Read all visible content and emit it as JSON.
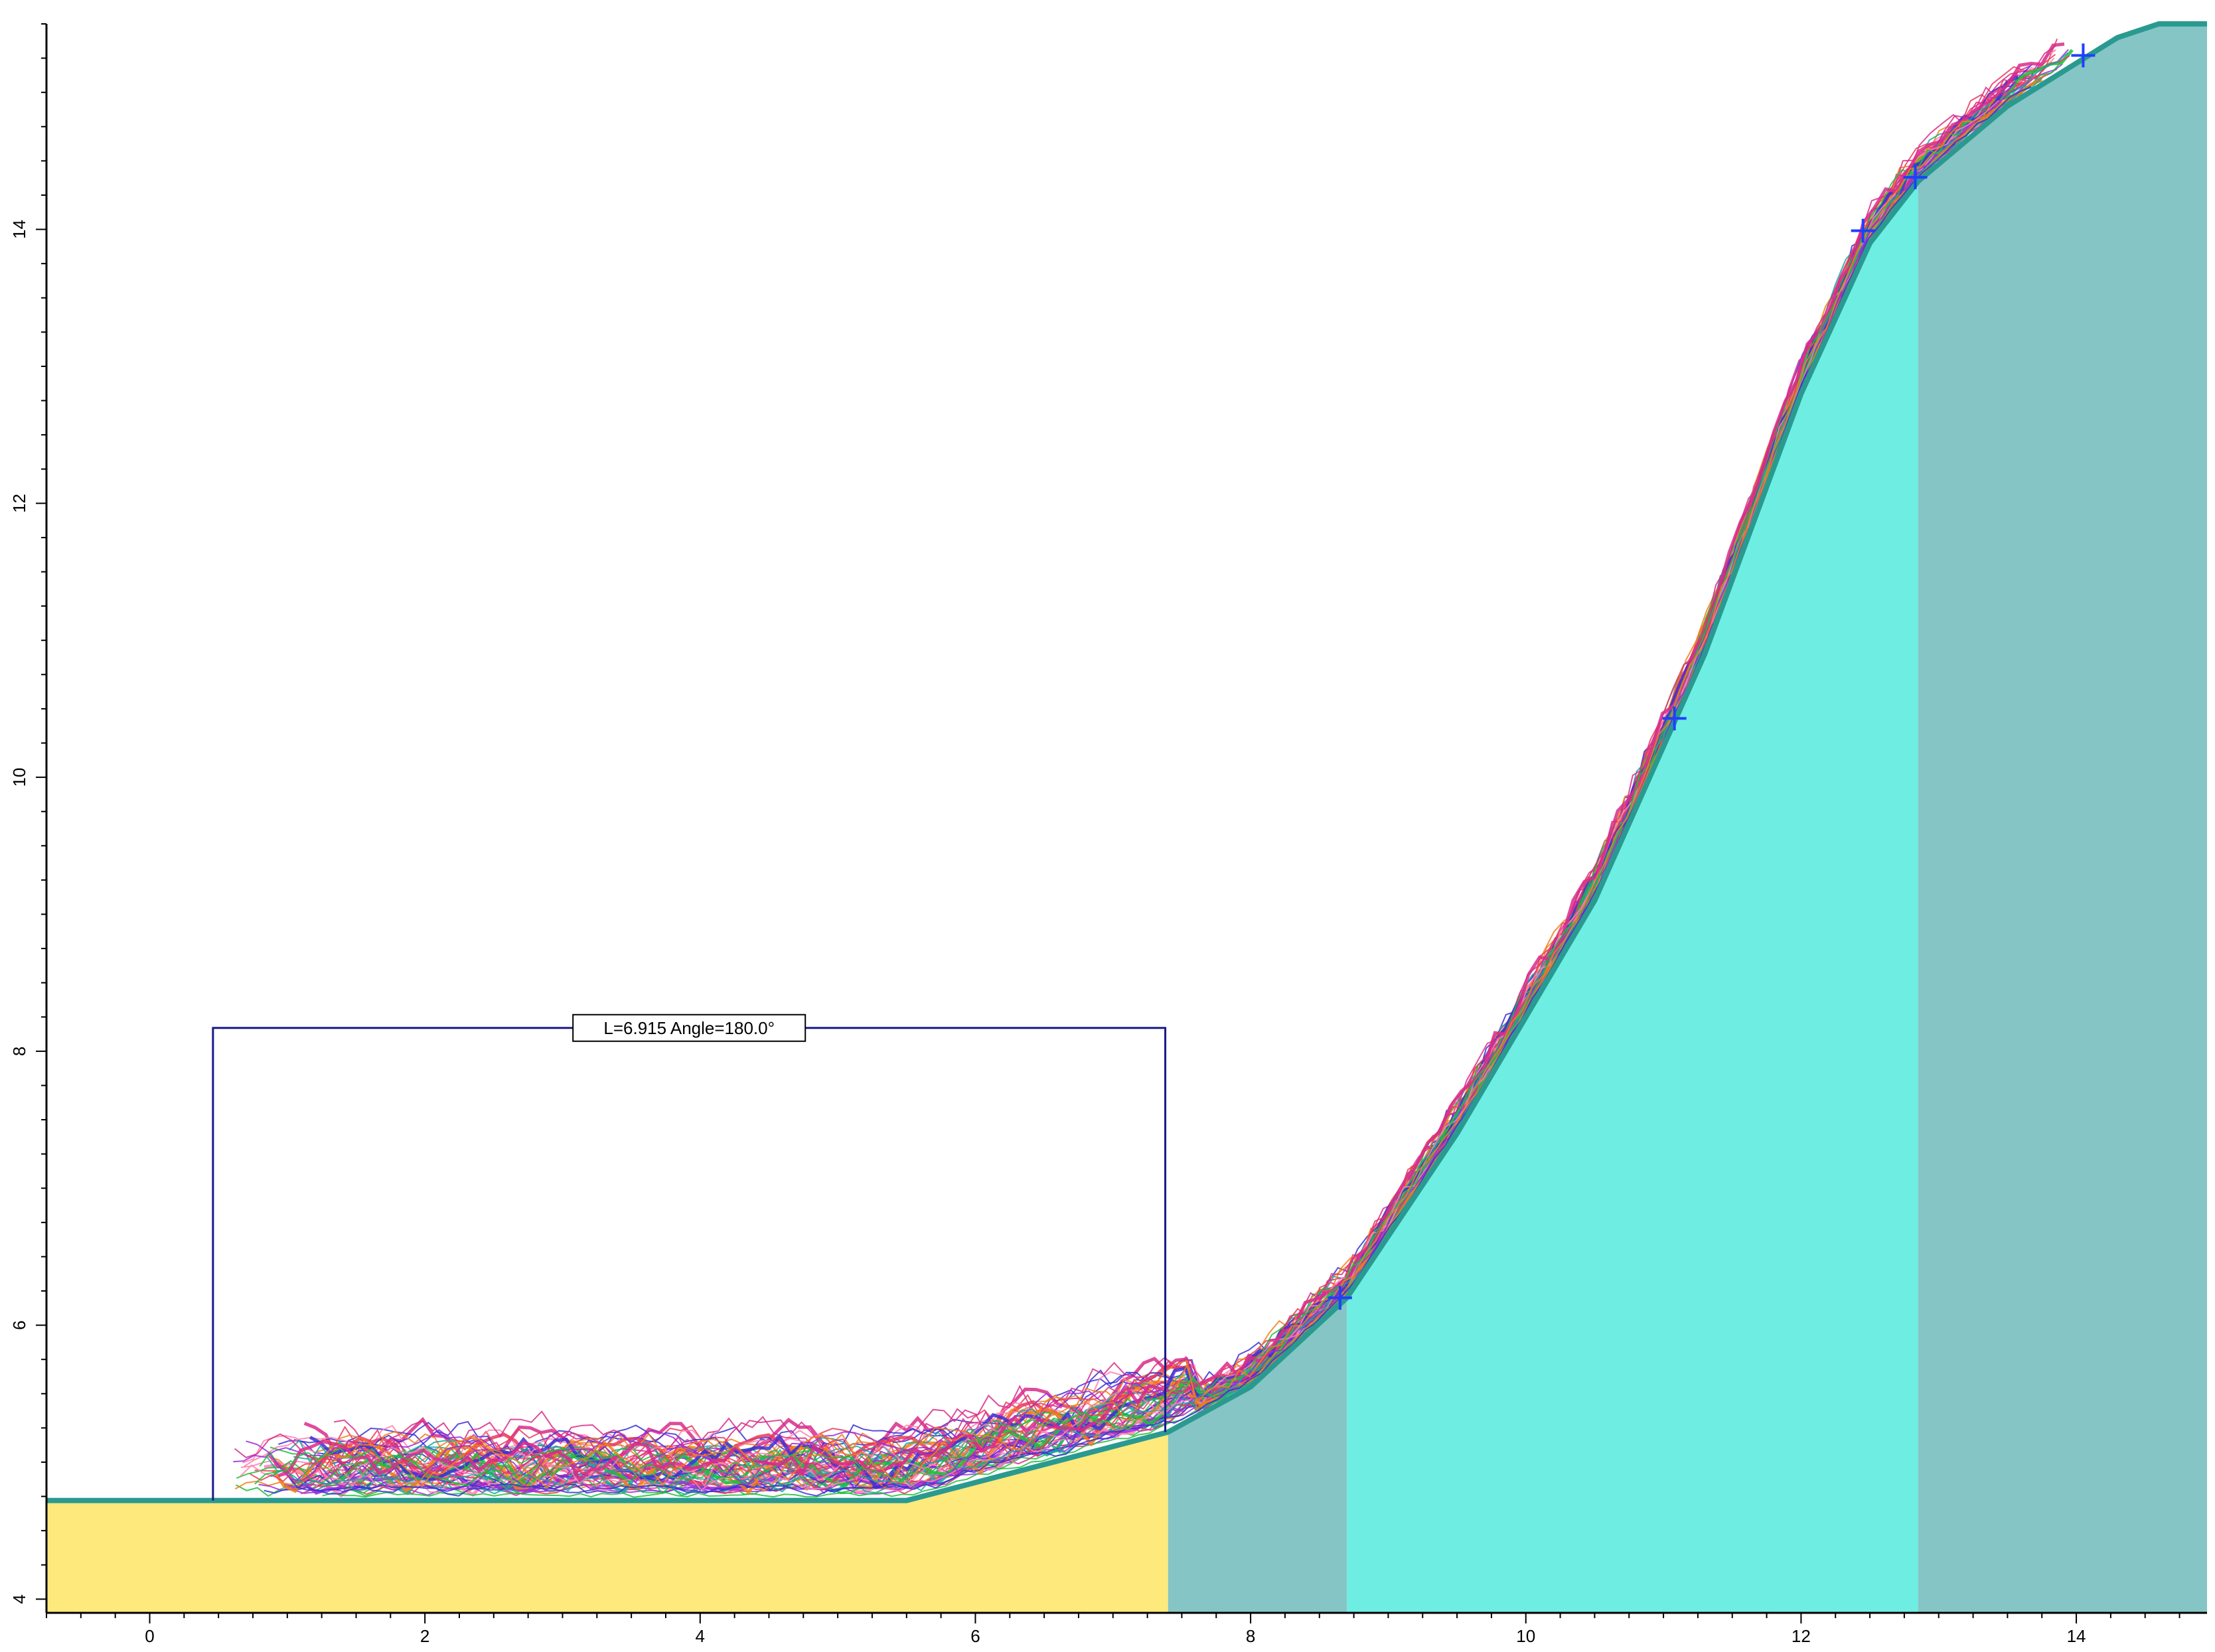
{
  "chart_data": {
    "type": "area",
    "title": "",
    "xlabel": "",
    "ylabel": "",
    "xlim": [
      -0.75,
      14.95
    ],
    "ylim": [
      3.9,
      15.5
    ],
    "x_ticks": [
      "0",
      "2",
      "4",
      "6",
      "8",
      "10",
      "12",
      "14"
    ],
    "y_ticks": [
      "4",
      "6",
      "8",
      "10",
      "12",
      "14"
    ],
    "grid": false,
    "slope_profile": {
      "x": [
        -0.75,
        0.4,
        5.5,
        7.4,
        8.0,
        8.7,
        9.5,
        10.5,
        11.3,
        12.0,
        12.5,
        12.85,
        13.5,
        14.3,
        14.6,
        14.95
      ],
      "y": [
        4.72,
        4.72,
        4.72,
        5.22,
        5.55,
        6.2,
        7.4,
        9.1,
        10.9,
        12.8,
        13.9,
        14.35,
        14.9,
        15.4,
        15.5,
        15.5
      ]
    },
    "zones": [
      {
        "name": "",
        "x_range": [
          -0.75,
          7.4
        ],
        "color": "#fde97c"
      },
      {
        "name": "",
        "x_range": [
          7.4,
          8.7
        ],
        "color": "#86c5c5"
      },
      {
        "name": "",
        "x_range": [
          8.7,
          12.85
        ],
        "color": "#6eede3"
      },
      {
        "name": "",
        "x_range": [
          12.85,
          14.95
        ],
        "color": "#86c5c5"
      }
    ],
    "markers": [
      {
        "x": 8.65,
        "y": 6.2
      },
      {
        "x": 11.08,
        "y": 10.43
      },
      {
        "x": 12.45,
        "y": 13.99
      },
      {
        "x": 12.83,
        "y": 14.38
      },
      {
        "x": 14.05,
        "y": 15.27
      }
    ],
    "dimension": {
      "label": "L=6.915  Angle=180.0°",
      "x_start": 0.46,
      "x_end": 7.38,
      "y_top": 8.17,
      "y_start": 4.72,
      "y_end": 5.22
    },
    "trajectories": {
      "count": 60,
      "colors": [
        "#d92b8a",
        "#3b2fd6",
        "#1fbf3a",
        "#f07f1a",
        "#9a2bd9",
        "#e83a5a",
        "#16a6a0",
        "#ff7fb0"
      ]
    },
    "colors": {
      "axis": "#000000",
      "profile_line": "#2a9a90",
      "marker": "#1f3fff",
      "dimension_line": "#1a1a8c"
    }
  }
}
